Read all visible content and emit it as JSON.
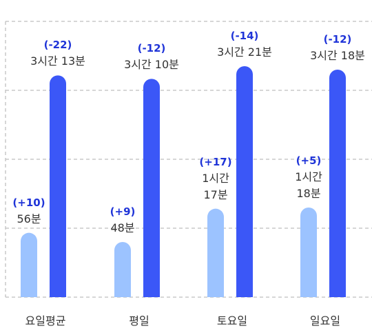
{
  "chart_data": {
    "type": "bar",
    "categories": [
      "요일평균",
      "평일",
      "토요일",
      "일요일"
    ],
    "series": [
      {
        "color": "#9cc3ff",
        "values": [
          56,
          48,
          77,
          78
        ],
        "value_labels": [
          "56분",
          "48분",
          "1시간 17분",
          "1시간 18분"
        ],
        "annotations": [
          "(+10)",
          "(+9)",
          "(+17)",
          "(+5)"
        ]
      },
      {
        "color": "#3b57f7",
        "values": [
          193,
          190,
          201,
          198
        ],
        "value_labels": [
          "3시간 13분",
          "3시간 10분",
          "3시간 21분",
          "3시간 18분"
        ],
        "annotations": [
          "(-22)",
          "(-12)",
          "(-14)",
          "(-12)"
        ]
      }
    ],
    "ylim": [
      0,
      240
    ],
    "yticks": [
      0,
      60,
      120,
      180,
      240
    ],
    "grid": true
  }
}
